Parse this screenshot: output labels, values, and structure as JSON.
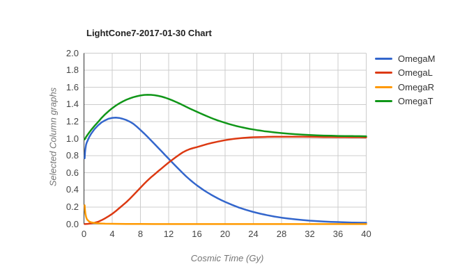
{
  "chart_data": {
    "type": "line",
    "title": "LightCone7-2017-01-30 Chart",
    "xlabel": "Cosmic Time (Gy)",
    "ylabel": "Selected Column graphs",
    "xlim": [
      0,
      40
    ],
    "ylim": [
      0,
      2
    ],
    "xticks": [
      0,
      4,
      8,
      12,
      16,
      20,
      24,
      28,
      32,
      36,
      40
    ],
    "yticks": [
      "0.0",
      "0.2",
      "0.4",
      "0.6",
      "0.8",
      "1.0",
      "1.2",
      "1.4",
      "1.6",
      "1.8",
      "2.0"
    ],
    "grid": true,
    "legend_position": "right",
    "axis_color": "#333333",
    "gridline_color": "#cccccc",
    "series": [
      {
        "name": "OmegaM",
        "color": "#3366cc",
        "points": [
          [
            0.1,
            0.77
          ],
          [
            0.15,
            0.84
          ],
          [
            0.2,
            0.88
          ],
          [
            0.3,
            0.93
          ],
          [
            0.4,
            0.955
          ],
          [
            0.5,
            0.975
          ],
          [
            0.75,
            1.02
          ],
          [
            1,
            1.055
          ],
          [
            1.5,
            1.112
          ],
          [
            2,
            1.156
          ],
          [
            2.5,
            1.19
          ],
          [
            3,
            1.215
          ],
          [
            3.5,
            1.233
          ],
          [
            4,
            1.243
          ],
          [
            4.5,
            1.246
          ],
          [
            5,
            1.242
          ],
          [
            5.5,
            1.232
          ],
          [
            6,
            1.218
          ],
          [
            6.5,
            1.198
          ],
          [
            7,
            1.173
          ],
          [
            7.5,
            1.14
          ],
          [
            8,
            1.102
          ],
          [
            8.5,
            1.063
          ],
          [
            9,
            1.022
          ],
          [
            9.5,
            0.98
          ],
          [
            10,
            0.937
          ],
          [
            10.5,
            0.894
          ],
          [
            11,
            0.851
          ],
          [
            11.5,
            0.808
          ],
          [
            12,
            0.765
          ],
          [
            12.5,
            0.722
          ],
          [
            13,
            0.68
          ],
          [
            13.5,
            0.638
          ],
          [
            14,
            0.597
          ],
          [
            14.5,
            0.557
          ],
          [
            15,
            0.52
          ],
          [
            15.5,
            0.486
          ],
          [
            16,
            0.454
          ],
          [
            16.5,
            0.424
          ],
          [
            17,
            0.396
          ],
          [
            17.5,
            0.37
          ],
          [
            18,
            0.345
          ],
          [
            18.5,
            0.322
          ],
          [
            19,
            0.3
          ],
          [
            19.5,
            0.28
          ],
          [
            20,
            0.26
          ],
          [
            21,
            0.225
          ],
          [
            22,
            0.193
          ],
          [
            23,
            0.166
          ],
          [
            24,
            0.142
          ],
          [
            25,
            0.122
          ],
          [
            26,
            0.104
          ],
          [
            27,
            0.089
          ],
          [
            28,
            0.076
          ],
          [
            29,
            0.065
          ],
          [
            30,
            0.056
          ],
          [
            31,
            0.048
          ],
          [
            32,
            0.041
          ],
          [
            33,
            0.036
          ],
          [
            34,
            0.031
          ],
          [
            35,
            0.027
          ],
          [
            36,
            0.024
          ],
          [
            37,
            0.021
          ],
          [
            38,
            0.019
          ],
          [
            39,
            0.017
          ],
          [
            40,
            0.016
          ]
        ]
      },
      {
        "name": "OmegaL",
        "color": "#dc3912",
        "points": [
          [
            0.1,
            0.001
          ],
          [
            0.5,
            0.003
          ],
          [
            1,
            0.008
          ],
          [
            1.5,
            0.016
          ],
          [
            2,
            0.028
          ],
          [
            2.5,
            0.046
          ],
          [
            3,
            0.068
          ],
          [
            3.5,
            0.093
          ],
          [
            4,
            0.12
          ],
          [
            4.5,
            0.152
          ],
          [
            5,
            0.187
          ],
          [
            5.5,
            0.222
          ],
          [
            6,
            0.258
          ],
          [
            6.5,
            0.297
          ],
          [
            7,
            0.339
          ],
          [
            7.5,
            0.382
          ],
          [
            8,
            0.426
          ],
          [
            8.5,
            0.469
          ],
          [
            9,
            0.51
          ],
          [
            9.5,
            0.548
          ],
          [
            10,
            0.583
          ],
          [
            10.5,
            0.618
          ],
          [
            11,
            0.652
          ],
          [
            11.5,
            0.686
          ],
          [
            12,
            0.72
          ],
          [
            12.5,
            0.752
          ],
          [
            13,
            0.782
          ],
          [
            13.5,
            0.812
          ],
          [
            14,
            0.84
          ],
          [
            14.5,
            0.861
          ],
          [
            15,
            0.878
          ],
          [
            15.5,
            0.89
          ],
          [
            16,
            0.901
          ],
          [
            16.5,
            0.913
          ],
          [
            17,
            0.925
          ],
          [
            17.5,
            0.937
          ],
          [
            18,
            0.948
          ],
          [
            18.5,
            0.957
          ],
          [
            19,
            0.966
          ],
          [
            19.5,
            0.974
          ],
          [
            20,
            0.982
          ],
          [
            20.5,
            0.989
          ],
          [
            21,
            0.995
          ],
          [
            21.5,
            1.0
          ],
          [
            22,
            1.004
          ],
          [
            22.5,
            1.008
          ],
          [
            23,
            1.011
          ],
          [
            23.5,
            1.014
          ],
          [
            24,
            1.016
          ],
          [
            25,
            1.019
          ],
          [
            26,
            1.021
          ],
          [
            27,
            1.022
          ],
          [
            28,
            1.023
          ],
          [
            29,
            1.023
          ],
          [
            30,
            1.023
          ],
          [
            31,
            1.022
          ],
          [
            32,
            1.021
          ],
          [
            33,
            1.02
          ],
          [
            34,
            1.019
          ],
          [
            35,
            1.018
          ],
          [
            36,
            1.017
          ],
          [
            37,
            1.017
          ],
          [
            38,
            1.016
          ],
          [
            39,
            1.016
          ],
          [
            40,
            1.015
          ]
        ]
      },
      {
        "name": "OmegaR",
        "color": "#ff9900",
        "points": [
          [
            0.1,
            0.22
          ],
          [
            0.15,
            0.16
          ],
          [
            0.2,
            0.125
          ],
          [
            0.3,
            0.085
          ],
          [
            0.4,
            0.062
          ],
          [
            0.5,
            0.048
          ],
          [
            0.75,
            0.03
          ],
          [
            1,
            0.021
          ],
          [
            1.5,
            0.013
          ],
          [
            2,
            0.009
          ],
          [
            2.5,
            0.007
          ],
          [
            3,
            0.005
          ],
          [
            4,
            0.004
          ],
          [
            5,
            0.003
          ],
          [
            6,
            0.002
          ],
          [
            8,
            0.002
          ],
          [
            10,
            0.001
          ],
          [
            15,
            0.001
          ],
          [
            20,
            0.001
          ],
          [
            30,
            0.001
          ],
          [
            40,
            0.001
          ]
        ]
      },
      {
        "name": "OmegaT",
        "color": "#109618",
        "points": [
          [
            0.1,
            0.991
          ],
          [
            0.2,
            1.005
          ],
          [
            0.3,
            1.02
          ],
          [
            0.5,
            1.045
          ],
          [
            0.75,
            1.073
          ],
          [
            1,
            1.1
          ],
          [
            1.5,
            1.15
          ],
          [
            2,
            1.196
          ],
          [
            2.5,
            1.243
          ],
          [
            3,
            1.285
          ],
          [
            3.5,
            1.322
          ],
          [
            4,
            1.356
          ],
          [
            4.5,
            1.386
          ],
          [
            5,
            1.412
          ],
          [
            5.5,
            1.435
          ],
          [
            6,
            1.455
          ],
          [
            6.5,
            1.471
          ],
          [
            7,
            1.485
          ],
          [
            7.5,
            1.496
          ],
          [
            8,
            1.505
          ],
          [
            8.5,
            1.511
          ],
          [
            9,
            1.513
          ],
          [
            9.5,
            1.512
          ],
          [
            10,
            1.508
          ],
          [
            10.5,
            1.501
          ],
          [
            11,
            1.492
          ],
          [
            11.5,
            1.48
          ],
          [
            12,
            1.465
          ],
          [
            12.5,
            1.449
          ],
          [
            13,
            1.431
          ],
          [
            13.5,
            1.412
          ],
          [
            14,
            1.392
          ],
          [
            14.5,
            1.372
          ],
          [
            15,
            1.352
          ],
          [
            15.5,
            1.333
          ],
          [
            16,
            1.315
          ],
          [
            16.5,
            1.296
          ],
          [
            17,
            1.278
          ],
          [
            17.5,
            1.26
          ],
          [
            18,
            1.243
          ],
          [
            18.5,
            1.227
          ],
          [
            19,
            1.212
          ],
          [
            19.5,
            1.198
          ],
          [
            20,
            1.185
          ],
          [
            20.5,
            1.172
          ],
          [
            21,
            1.161
          ],
          [
            21.5,
            1.15
          ],
          [
            22,
            1.14
          ],
          [
            22.5,
            1.131
          ],
          [
            23,
            1.122
          ],
          [
            23.5,
            1.114
          ],
          [
            24,
            1.107
          ],
          [
            24.5,
            1.1
          ],
          [
            25,
            1.094
          ],
          [
            25.5,
            1.088
          ],
          [
            26,
            1.083
          ],
          [
            26.5,
            1.078
          ],
          [
            27,
            1.073
          ],
          [
            27.5,
            1.069
          ],
          [
            28,
            1.065
          ],
          [
            29,
            1.058
          ],
          [
            30,
            1.052
          ],
          [
            31,
            1.047
          ],
          [
            32,
            1.043
          ],
          [
            33,
            1.039
          ],
          [
            34,
            1.036
          ],
          [
            35,
            1.034
          ],
          [
            36,
            1.032
          ],
          [
            37,
            1.031
          ],
          [
            38,
            1.03
          ],
          [
            39,
            1.029
          ],
          [
            40,
            1.028
          ]
        ]
      }
    ]
  }
}
